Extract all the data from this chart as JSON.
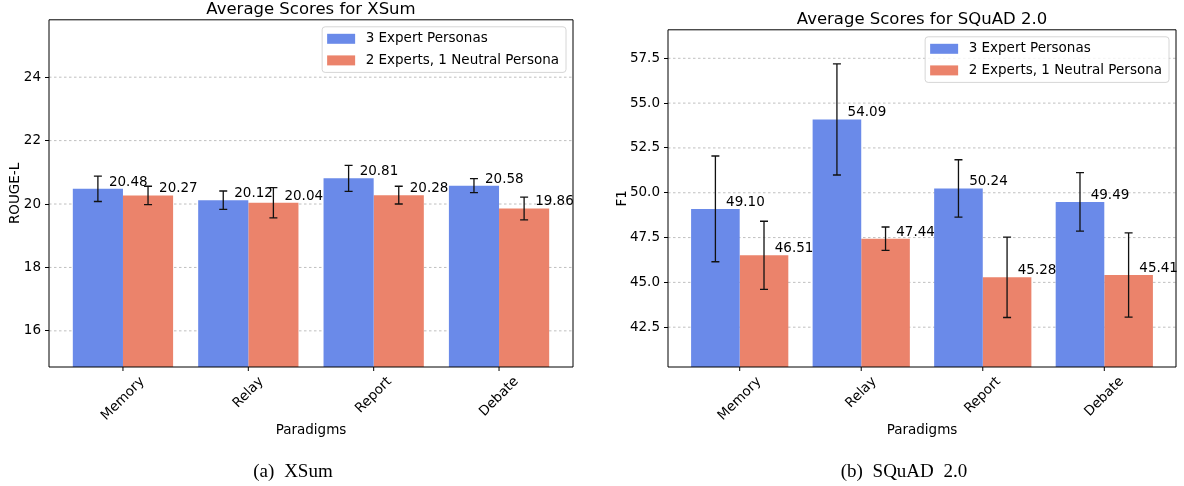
{
  "chart_data": [
    {
      "type": "bar",
      "title": "Average Scores for XSum",
      "xlabel": "Paradigms",
      "ylabel": "ROUGE-L",
      "categories": [
        "Memory",
        "Relay",
        "Report",
        "Debate"
      ],
      "series": [
        {
          "name": "3 Expert Personas",
          "color": "#6a8ae9",
          "values": [
            20.48,
            20.12,
            20.81,
            20.58
          ],
          "errors": [
            0.4,
            0.29,
            0.41,
            0.22
          ]
        },
        {
          "name": "2 Experts, 1 Neutral Persona",
          "color": "#eb836b",
          "values": [
            20.27,
            20.04,
            20.28,
            19.86
          ],
          "errors": [
            0.29,
            0.48,
            0.28,
            0.36
          ]
        }
      ],
      "ylim": [
        14.86,
        25.81
      ],
      "yticks": [
        16,
        18,
        20,
        22,
        24
      ],
      "grid": "y",
      "legend": "top right",
      "data_labels": true,
      "annotations": [
        "(a) XSum"
      ]
    },
    {
      "type": "bar",
      "title": "Average Scores for SQuAD 2.0",
      "xlabel": "Paradigms",
      "ylabel": "F1",
      "categories": [
        "Memory",
        "Relay",
        "Report",
        "Debate"
      ],
      "series": [
        {
          "name": "3 Expert Personas",
          "color": "#6a8ae9",
          "values": [
            49.1,
            54.09,
            50.24,
            49.49
          ],
          "errors": [
            2.95,
            3.1,
            1.6,
            1.63
          ],
          "value_labels": [
            "49.10",
            "54.09",
            "50.24",
            "49.49"
          ]
        },
        {
          "name": "2 Experts, 1 Neutral Persona",
          "color": "#eb836b",
          "values": [
            46.51,
            47.44,
            45.28,
            45.41
          ],
          "errors": [
            1.9,
            0.65,
            2.24,
            2.35
          ],
          "value_labels": [
            "46.51",
            "47.44",
            "45.28",
            "45.41"
          ]
        }
      ],
      "ylim": [
        40.28,
        59.09
      ],
      "yticks": [
        42.5,
        {
          "value": 45,
          "label": "45.0"
        },
        47.5,
        {
          "value": 50,
          "label": "50.0"
        },
        52.5,
        {
          "value": 55,
          "label": "55.0"
        },
        57.5
      ],
      "grid": "y",
      "legend": "top right",
      "annotations": [
        "(b) SQuAD 2.0"
      ]
    }
  ]
}
